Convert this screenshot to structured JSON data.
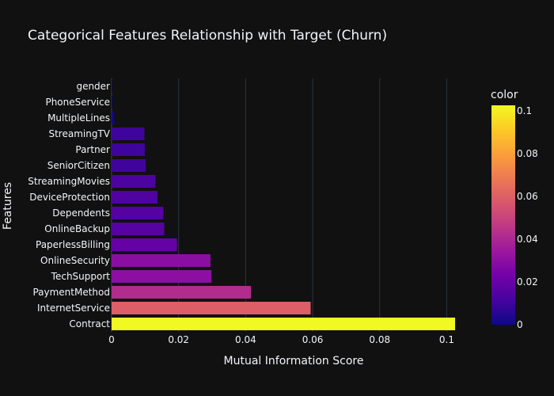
{
  "chart_data": {
    "type": "bar",
    "orientation": "horizontal",
    "title": "Categorical Features Relationship with Target (Churn)",
    "xlabel": "Mutual Information Score",
    "ylabel": "Features",
    "xlim": [
      0,
      0.1032
    ],
    "x_ticks": [
      0,
      0.02,
      0.04,
      0.06,
      0.08,
      0.1
    ],
    "x_tick_labels": [
      "0",
      "0.02",
      "0.04",
      "0.06",
      "0.08",
      "0.1"
    ],
    "grid": true,
    "categories": [
      "gender",
      "PhoneService",
      "MultipleLines",
      "StreamingTV",
      "Partner",
      "SeniorCitizen",
      "StreamingMovies",
      "DeviceProtection",
      "Dependents",
      "OnlineBackup",
      "PaperlessBilling",
      "OnlineSecurity",
      "TechSupport",
      "PaymentMethod",
      "InternetService",
      "Contract"
    ],
    "values": [
      0.0001,
      0.0002,
      0.0008,
      0.0098,
      0.0099,
      0.0102,
      0.0131,
      0.0137,
      0.0154,
      0.0157,
      0.0195,
      0.0295,
      0.0298,
      0.0416,
      0.0594,
      0.1025
    ],
    "colorbar": {
      "title": "color",
      "range": [
        0,
        0.1025
      ],
      "ticks": [
        0,
        0.02,
        0.04,
        0.06,
        0.08,
        0.1
      ],
      "tick_labels": [
        "0",
        "0.02",
        "0.04",
        "0.06",
        "0.08",
        "0.1"
      ],
      "colorscale": [
        "#0d0887",
        "#46039f",
        "#7201a8",
        "#9c179e",
        "#bd3786",
        "#d8576b",
        "#ed7953",
        "#fb9f3a",
        "#fdca26",
        "#f0f921"
      ]
    },
    "background": "#111111",
    "grid_color": "#283442",
    "text_color": "#f2f5fa"
  }
}
